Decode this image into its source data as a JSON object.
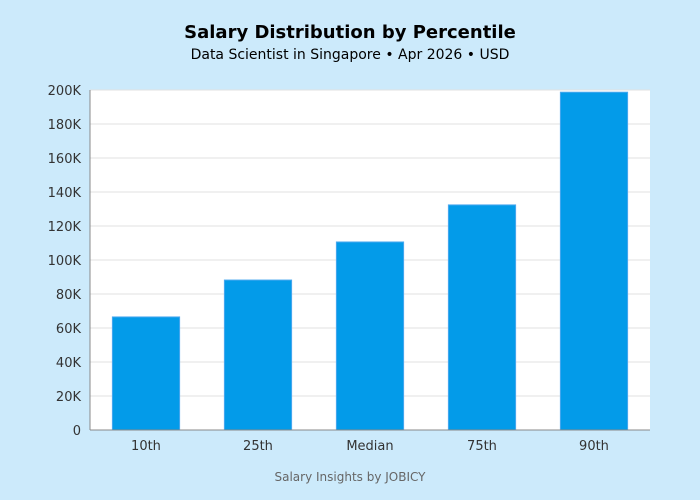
{
  "chart_data": {
    "type": "bar",
    "title": "Salary Distribution by Percentile",
    "subtitle": "Data Scientist in Singapore • Apr 2026 • USD",
    "categories": [
      "10th",
      "25th",
      "Median",
      "75th",
      "90th"
    ],
    "values": [
      66500,
      88200,
      110600,
      132400,
      198700
    ],
    "ylim": [
      0,
      200000
    ],
    "yticks": [
      "0",
      "20K",
      "40K",
      "60K",
      "80K",
      "100K",
      "120K",
      "140K",
      "160K",
      "180K",
      "200K"
    ],
    "xlabel": "",
    "ylabel": "",
    "grid": true,
    "bar_color": "#039be9",
    "background_color": "#cceafb",
    "credit": "Salary Insights by JOBICY"
  }
}
